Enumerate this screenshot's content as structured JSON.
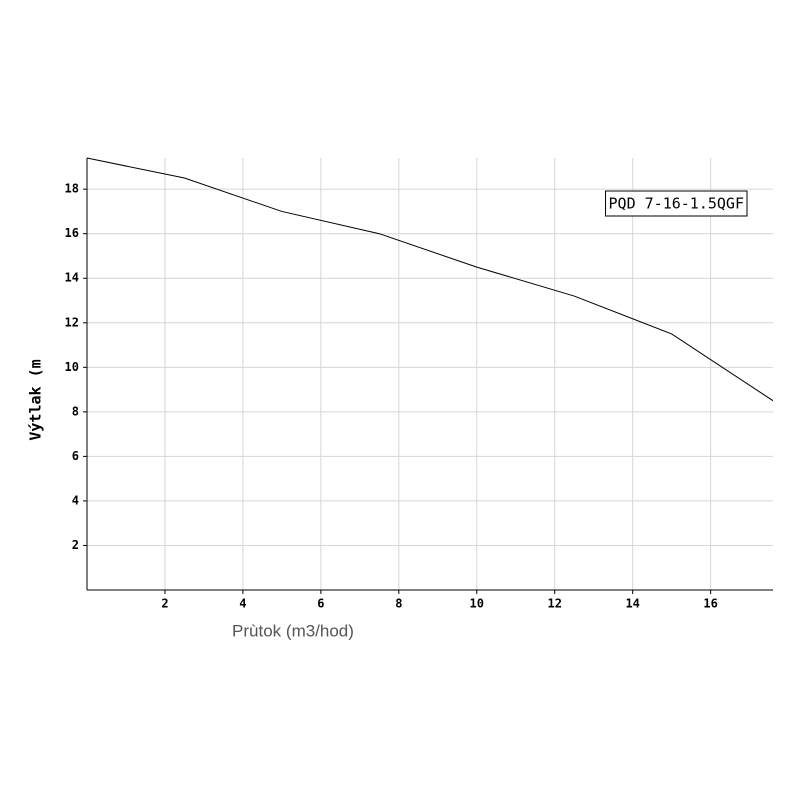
{
  "chart_data": {
    "type": "line",
    "x_label": "Prùtok (m3/hod)",
    "y_label": "Výtlak (m",
    "x": [
      0,
      2.5,
      5,
      7.5,
      10,
      12.5,
      15,
      17.6
    ],
    "series": [
      {
        "name": "PQD 7-16-1.5QGF",
        "color": "#000000",
        "values": [
          19.4,
          18.5,
          17.0,
          16.0,
          14.5,
          13.2,
          11.5,
          8.5
        ]
      }
    ],
    "xlim": [
      0,
      17.6
    ],
    "ylim": [
      0,
      19.4
    ],
    "xticks": [
      2,
      4,
      6,
      8,
      10,
      12,
      14,
      16
    ],
    "yticks": [
      2,
      4,
      6,
      8,
      10,
      12,
      14,
      16,
      18
    ],
    "grid": true,
    "legend": "upper-right"
  }
}
